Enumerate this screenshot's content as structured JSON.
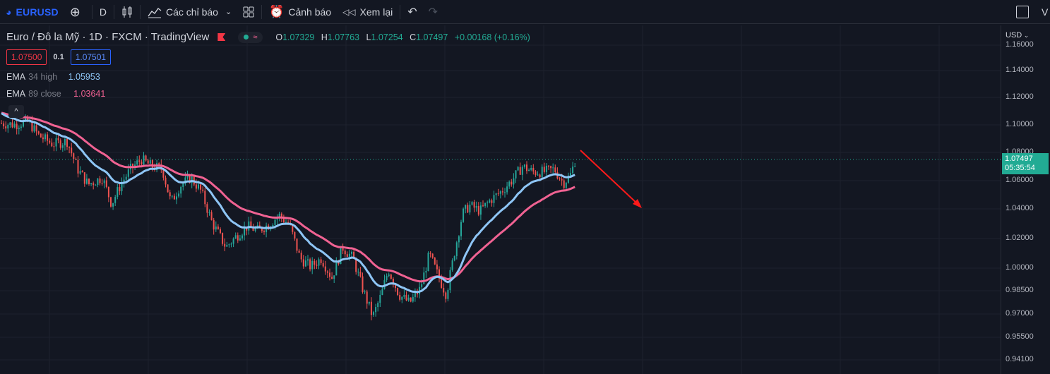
{
  "toolbar": {
    "symbol": "EURUSD",
    "interval": "D",
    "indicators_label": "Các chỉ báo",
    "alerts_label": "Cảnh báo",
    "replay_label": "Xem lại",
    "right_edge_text": "V"
  },
  "legend": {
    "title": "Euro / Đô la Mỹ · 1D · FXCM · TradingView",
    "ohlc": {
      "o_label": "O",
      "o": "1.07329",
      "h_label": "H",
      "h": "1.07763",
      "l_label": "L",
      "l": "1.07254",
      "c_label": "C",
      "c": "1.07497",
      "change": "+0.00168 (+0.16%)"
    },
    "bid": "1.07500",
    "spread": "0.1",
    "ask": "1.07501",
    "ema1": {
      "name": "EMA",
      "params": "34 high",
      "value": "1.05953",
      "color": "#7fbef4"
    },
    "ema2": {
      "name": "EMA",
      "params": "89 close",
      "value": "1.03641",
      "color": "#f06292"
    }
  },
  "price_axis": {
    "currency": "USD",
    "ticks": [
      "1.16000",
      "1.14000",
      "1.12000",
      "1.10000",
      "1.08000",
      "1.06000",
      "1.04000",
      "1.02000",
      "1.00000",
      "0.98500",
      "0.97000",
      "0.95500",
      "0.94100"
    ],
    "last_price": "1.07497",
    "countdown": "05:35:54"
  },
  "colors": {
    "up": "#26a69a",
    "down": "#ef5350",
    "ema34": "#8ec5f5",
    "ema89": "#f06292",
    "arrow": "#ff1a1a",
    "background": "#131722"
  }
}
